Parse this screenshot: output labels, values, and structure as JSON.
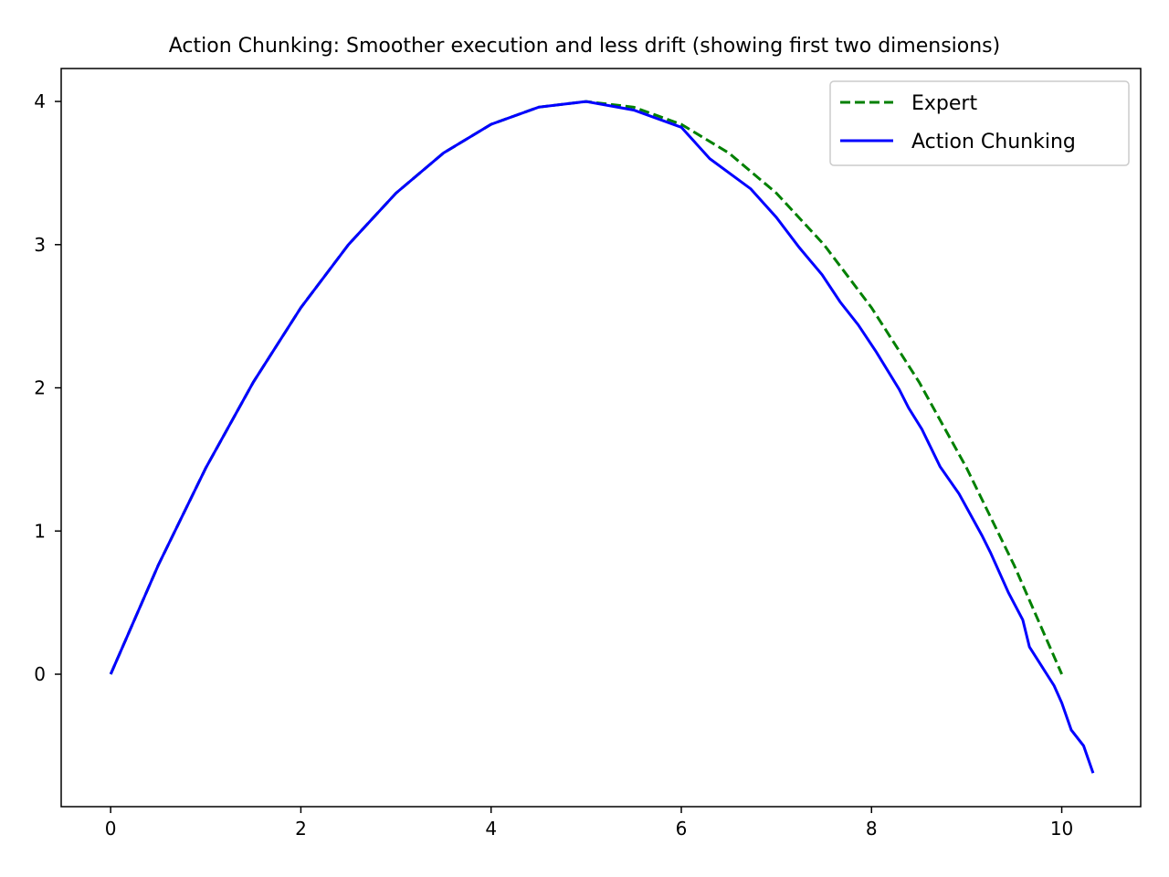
{
  "chart_data": {
    "type": "line",
    "title": "Action Chunking: Smoother execution and less drift (showing first two dimensions)",
    "xlabel": "",
    "ylabel": "",
    "xlim": [
      -0.52,
      10.83
    ],
    "ylim": [
      -0.925,
      4.23
    ],
    "xticks": [
      0,
      2,
      4,
      6,
      8,
      10
    ],
    "yticks": [
      0,
      1,
      2,
      3,
      4
    ],
    "grid": false,
    "legend_position": "top-right",
    "series": [
      {
        "name": "Expert",
        "color": "#008000",
        "style": "dashed",
        "x": [
          0,
          0.5,
          1,
          1.5,
          2,
          2.5,
          3,
          3.5,
          4,
          4.5,
          5,
          5.5,
          6,
          6.5,
          7,
          7.5,
          8,
          8.5,
          9,
          9.5,
          10
        ],
        "y": [
          0,
          0.76,
          1.44,
          2.04,
          2.56,
          3.0,
          3.36,
          3.64,
          3.84,
          3.96,
          4.0,
          3.96,
          3.84,
          3.64,
          3.36,
          3.0,
          2.56,
          2.04,
          1.44,
          0.76,
          0
        ]
      },
      {
        "name": "Action Chunking",
        "color": "#0000ff",
        "style": "solid",
        "x": [
          0,
          0.5,
          1,
          1.5,
          2,
          2.5,
          3,
          3.5,
          4,
          4.5,
          5,
          5.5,
          6,
          6.3,
          6.73,
          7.0,
          7.24,
          7.48,
          7.67,
          7.86,
          8.05,
          8.29,
          8.39,
          8.53,
          8.72,
          8.92,
          9.16,
          9.25,
          9.44,
          9.59,
          9.66,
          9.92,
          10.0,
          10.1,
          10.23,
          10.33
        ],
        "y": [
          0,
          0.76,
          1.44,
          2.04,
          2.56,
          3.0,
          3.36,
          3.64,
          3.84,
          3.96,
          4.0,
          3.94,
          3.82,
          3.6,
          3.39,
          3.19,
          2.98,
          2.79,
          2.6,
          2.44,
          2.25,
          1.99,
          1.86,
          1.71,
          1.45,
          1.26,
          0.97,
          0.85,
          0.57,
          0.38,
          0.19,
          -0.08,
          -0.2,
          -0.39,
          -0.5,
          -0.69
        ]
      }
    ]
  }
}
